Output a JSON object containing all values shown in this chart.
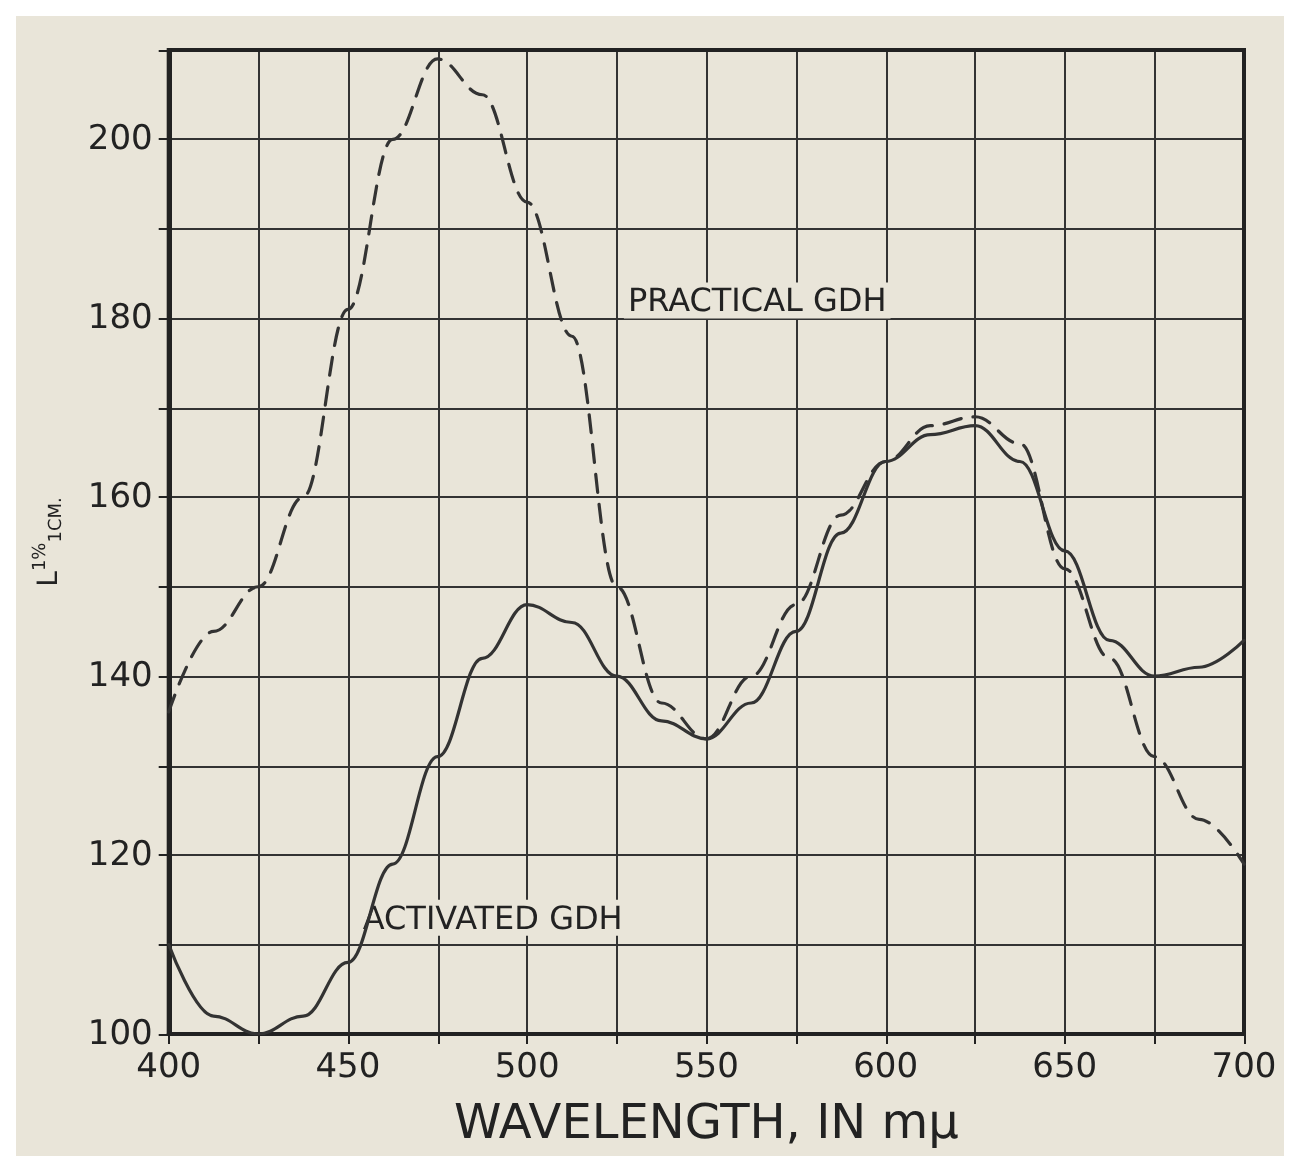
{
  "chart_data": {
    "type": "line",
    "xlabel": "WAVELENGTH, IN mμ",
    "ylabel": "L$^{1%}$$_{1CM.}$",
    "x": [
      400,
      412.5,
      425,
      437.5,
      450,
      462.5,
      475,
      487.5,
      500,
      512.5,
      525,
      537.5,
      550,
      562.5,
      575,
      587.5,
      600,
      612.5,
      625,
      637.5,
      650,
      662.5,
      675,
      687.5,
      700
    ],
    "series": [
      {
        "name": "PRACTICAL GDH",
        "color": "#333333",
        "line_style": "dashed",
        "values": [
          136,
          145,
          150,
          160,
          181,
          200,
          209,
          205,
          193,
          178,
          150,
          137,
          133,
          140,
          148,
          158,
          164,
          168,
          169,
          166,
          152,
          142,
          131,
          124,
          119
        ]
      },
      {
        "name": "ACTIVATED GDH",
        "color": "#333333",
        "line_style": "solid",
        "values": [
          110,
          102,
          100,
          102,
          108,
          119,
          131,
          142,
          148,
          146,
          140,
          135,
          133,
          137,
          145,
          156,
          164,
          167,
          168,
          164,
          154,
          144,
          140,
          141,
          144
        ]
      }
    ],
    "xlim": [
      400,
      700
    ],
    "xticks": [
      400,
      {
        "value": 425,
        "label": null
      },
      450,
      {
        "value": 475,
        "label": null
      },
      500,
      {
        "value": 525,
        "label": null
      },
      550,
      {
        "value": 575,
        "label": null
      },
      600,
      {
        "value": 625,
        "label": null
      },
      650,
      {
        "value": 675,
        "label": null
      },
      700
    ],
    "ylim": [
      100,
      210
    ],
    "yticks": [
      100,
      {
        "value": 110,
        "label": null
      },
      120,
      {
        "value": 130,
        "label": null
      },
      140,
      {
        "value": 150,
        "label": null
      },
      160,
      {
        "value": 170,
        "label": null
      },
      180,
      {
        "value": 190,
        "label": null
      },
      200,
      {
        "value": 210,
        "label": null
      }
    ],
    "grid": true,
    "marker": "none",
    "legend": false
  }
}
